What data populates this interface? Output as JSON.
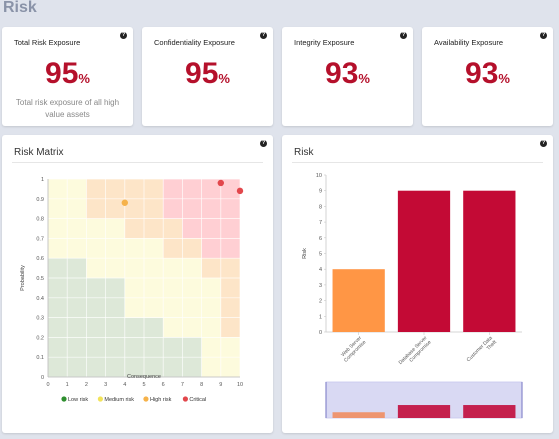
{
  "page": {
    "title": "Risk"
  },
  "kpis": [
    {
      "title": "Total Risk Exposure",
      "value": "95",
      "unit": "%",
      "subtitle": "Total risk exposure of all high value assets"
    },
    {
      "title": "Confidentiality Exposure",
      "value": "95",
      "unit": "%"
    },
    {
      "title": "Integrity Exposure",
      "value": "93",
      "unit": "%"
    },
    {
      "title": "Availability Exposure",
      "value": "93",
      "unit": "%"
    }
  ],
  "help_icon": "question-circle-icon",
  "colors": {
    "accent": "#b5102b",
    "low": "#dde8d8",
    "medium": "#fdfbdd",
    "high": "#fde5c8",
    "critical": "#ffcfd3",
    "bar_orange": "#ff9645",
    "bar_red": "#c30a35"
  },
  "risk_matrix": {
    "title": "Risk Matrix",
    "chart_data": {
      "type": "scatter",
      "xlabel": "Consequence",
      "ylabel": "Probability",
      "xlim": [
        0,
        10
      ],
      "ylim": [
        0,
        1
      ],
      "x_ticks": [
        "0",
        "1",
        "2",
        "3",
        "4",
        "5",
        "6",
        "7",
        "8",
        "9",
        "10"
      ],
      "y_ticks": [
        "0",
        "0.1",
        "0.2",
        "0.3",
        "0.4",
        "0.5",
        "0.6",
        "0.7",
        "0.8",
        "0.9",
        "1"
      ],
      "points": [
        {
          "x": 4,
          "y": 0.88,
          "level": "High risk"
        },
        {
          "x": 9,
          "y": 0.98,
          "level": "Critical"
        },
        {
          "x": 10,
          "y": 0.94,
          "level": "Critical"
        }
      ],
      "legend": [
        {
          "label": "Low risk",
          "color": "#2f8f2f"
        },
        {
          "label": "Medium risk",
          "color": "#f2e35a"
        },
        {
          "label": "High risk",
          "color": "#f6b24a"
        },
        {
          "label": "Critical",
          "color": "#e2474c"
        }
      ],
      "legend_placement": "bottom"
    }
  },
  "risk_bar": {
    "title": "Risk",
    "chart_data": {
      "type": "bar",
      "categories": [
        "Web Server Compromise",
        "Database Server Compromise",
        "Customer Data Theft"
      ],
      "values": [
        4,
        9,
        9
      ],
      "ylabel": "Risk",
      "ylim": [
        0,
        10
      ],
      "y_ticks": [
        "0",
        "1",
        "2",
        "3",
        "4",
        "5",
        "6",
        "7",
        "8",
        "9",
        "10"
      ],
      "grid": false
    }
  }
}
